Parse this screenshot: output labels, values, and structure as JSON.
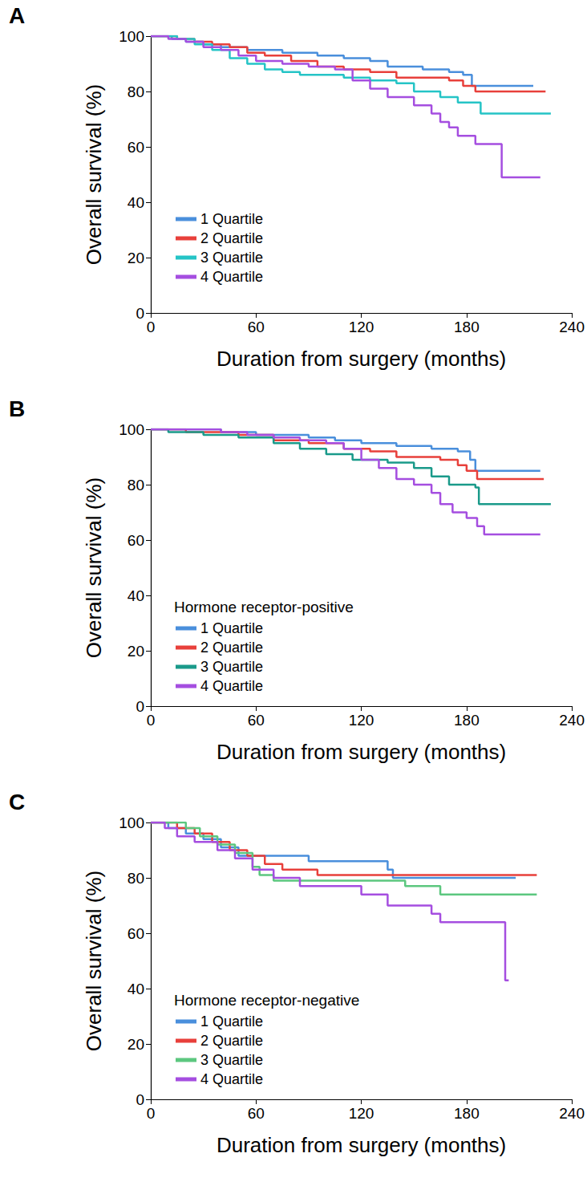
{
  "chart_data": [
    {
      "type": "line",
      "title": "A",
      "x_label": "Duration from surgery (months)",
      "y_label": "Overall survival (%)",
      "xlim": [
        0,
        240
      ],
      "xticks": [
        0,
        60,
        120,
        180,
        240
      ],
      "ylim": [
        0,
        100
      ],
      "yticks": [
        0,
        20,
        40,
        60,
        80,
        100
      ],
      "grid": false,
      "legend": "lower left",
      "line_style": "step",
      "series": [
        {
          "name": "1 Quartile",
          "color": "#4a8fdc",
          "x": [
            0,
            12,
            20,
            30,
            40,
            55,
            75,
            95,
            110,
            125,
            135,
            155,
            170,
            178,
            183,
            218
          ],
          "values": [
            100,
            99,
            98,
            97,
            96,
            95,
            94,
            93,
            92,
            91,
            89,
            88,
            87,
            86,
            82,
            82
          ]
        },
        {
          "name": "2 Quartile",
          "color": "#e8403b",
          "x": [
            0,
            15,
            25,
            35,
            45,
            55,
            65,
            80,
            95,
            110,
            125,
            140,
            170,
            178,
            185,
            225
          ],
          "values": [
            100,
            99,
            98,
            97,
            96,
            94,
            93,
            91,
            89,
            88,
            87,
            85,
            84,
            82,
            80,
            80
          ]
        },
        {
          "name": "3 Quartile",
          "color": "#25c4c6",
          "x": [
            0,
            15,
            25,
            35,
            45,
            55,
            65,
            75,
            85,
            110,
            125,
            140,
            150,
            165,
            175,
            188,
            228
          ],
          "values": [
            100,
            99,
            97,
            95,
            92,
            90,
            88,
            87,
            86,
            85,
            84,
            83,
            80,
            78,
            76,
            72,
            72
          ]
        },
        {
          "name": "4 Quartile",
          "color": "#a54ee0",
          "x": [
            0,
            10,
            20,
            30,
            40,
            50,
            60,
            75,
            90,
            105,
            115,
            125,
            135,
            150,
            160,
            165,
            170,
            175,
            185,
            200,
            222
          ],
          "values": [
            100,
            99,
            98,
            96,
            95,
            93,
            91,
            90,
            89,
            88,
            84,
            81,
            78,
            75,
            72,
            69,
            67,
            64,
            61,
            49,
            49
          ]
        }
      ]
    },
    {
      "type": "line",
      "title": "B",
      "subtitle": "Hormone receptor-positive",
      "x_label": "Duration from surgery (months)",
      "y_label": "Overall survival (%)",
      "xlim": [
        0,
        240
      ],
      "xticks": [
        0,
        60,
        120,
        180,
        240
      ],
      "ylim": [
        0,
        100
      ],
      "yticks": [
        0,
        20,
        40,
        60,
        80,
        100
      ],
      "grid": false,
      "legend": "lower left",
      "line_style": "step",
      "series": [
        {
          "name": "1 Quartile",
          "color": "#4a8fdc",
          "x": [
            0,
            40,
            60,
            90,
            105,
            120,
            140,
            160,
            175,
            182,
            185,
            222
          ],
          "values": [
            100,
            99,
            98,
            97,
            96,
            95,
            94,
            93,
            92,
            89,
            85,
            85
          ]
        },
        {
          "name": "2 Quartile",
          "color": "#e8403b",
          "x": [
            0,
            20,
            50,
            70,
            90,
            110,
            125,
            140,
            165,
            175,
            180,
            186,
            224
          ],
          "values": [
            100,
            99,
            98,
            96,
            95,
            93,
            92,
            90,
            89,
            87,
            85,
            82,
            82
          ]
        },
        {
          "name": "3 Quartile",
          "color": "#1a9a8a",
          "x": [
            0,
            10,
            30,
            50,
            70,
            85,
            100,
            115,
            135,
            150,
            160,
            170,
            185,
            187,
            228
          ],
          "values": [
            100,
            99,
            98,
            97,
            95,
            93,
            91,
            89,
            88,
            86,
            83,
            80,
            79,
            73,
            73
          ]
        },
        {
          "name": "4 Quartile",
          "color": "#a54ee0",
          "x": [
            0,
            40,
            55,
            70,
            85,
            100,
            110,
            120,
            130,
            140,
            150,
            160,
            165,
            172,
            180,
            186,
            190,
            222
          ],
          "values": [
            100,
            99,
            98,
            97,
            96,
            95,
            93,
            89,
            86,
            82,
            80,
            77,
            73,
            70,
            68,
            65,
            62,
            62
          ]
        }
      ]
    },
    {
      "type": "line",
      "title": "C",
      "subtitle": "Hormone receptor-negative",
      "x_label": "Duration from surgery (months)",
      "y_label": "Overall survival (%)",
      "xlim": [
        0,
        240
      ],
      "xticks": [
        0,
        60,
        120,
        180,
        240
      ],
      "ylim": [
        0,
        100
      ],
      "yticks": [
        0,
        20,
        40,
        60,
        80,
        100
      ],
      "grid": false,
      "legend": "lower left",
      "line_style": "step",
      "series": [
        {
          "name": "1 Quartile",
          "color": "#4a8fdc",
          "x": [
            0,
            10,
            20,
            30,
            40,
            50,
            90,
            135,
            138,
            208
          ],
          "values": [
            100,
            98,
            96,
            94,
            91,
            88,
            86,
            83,
            80,
            80
          ]
        },
        {
          "name": "2 Quartile",
          "color": "#e8403b",
          "x": [
            0,
            15,
            25,
            35,
            45,
            55,
            65,
            75,
            95,
            220
          ],
          "values": [
            100,
            98,
            96,
            93,
            90,
            88,
            85,
            83,
            81,
            81
          ]
        },
        {
          "name": "3 Quartile",
          "color": "#5cc77f",
          "x": [
            0,
            20,
            28,
            38,
            48,
            58,
            62,
            70,
            145,
            165,
            220
          ],
          "values": [
            100,
            98,
            95,
            92,
            89,
            84,
            81,
            79,
            77,
            74,
            74
          ]
        },
        {
          "name": "4 Quartile",
          "color": "#a54ee0",
          "x": [
            0,
            8,
            15,
            25,
            38,
            48,
            58,
            70,
            85,
            120,
            135,
            160,
            165,
            202,
            204
          ],
          "values": [
            100,
            98,
            95,
            93,
            90,
            87,
            83,
            80,
            77,
            74,
            70,
            67,
            64,
            43,
            43
          ]
        }
      ]
    }
  ]
}
